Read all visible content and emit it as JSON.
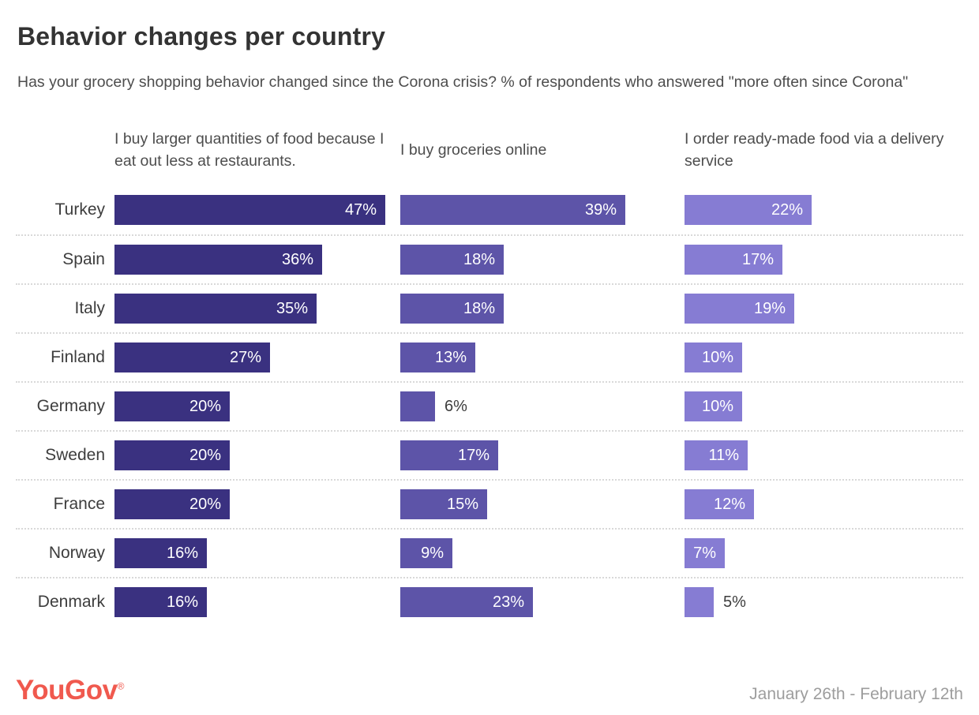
{
  "header": {
    "title": "Behavior changes per country",
    "subtitle": "Has your grocery shopping behavior changed since the Corona crisis? % of respondents who answered \"more often since Corona\""
  },
  "chart_data": {
    "type": "bar",
    "orientation": "horizontal",
    "categories": [
      "Turkey",
      "Spain",
      "Italy",
      "Finland",
      "Germany",
      "Sweden",
      "France",
      "Norway",
      "Denmark"
    ],
    "series": [
      {
        "name": "I buy larger quantities of food because I eat out less at restaurants.",
        "color": "#3a3180",
        "values": [
          47,
          36,
          35,
          27,
          20,
          20,
          20,
          16,
          16
        ]
      },
      {
        "name": "I buy groceries online",
        "color": "#5d54a8",
        "values": [
          39,
          18,
          18,
          13,
          6,
          17,
          15,
          9,
          23
        ]
      },
      {
        "name": "I order ready-made food via a delivery service",
        "color": "#867cd3",
        "values": [
          22,
          17,
          19,
          10,
          10,
          11,
          12,
          7,
          5
        ]
      }
    ],
    "value_suffix": "%",
    "xlim": [
      0,
      49
    ],
    "value_labels": "inside bar end, white; outside in dark gray when bar too short",
    "grid": "dotted horizontal separators between rows",
    "legend_position": "column headers above each bar group"
  },
  "footer": {
    "logo_text": "YouGov",
    "logo_registered_mark": "®",
    "logo_color": "#f0594e",
    "date_range": "January 26th - February 12th"
  }
}
